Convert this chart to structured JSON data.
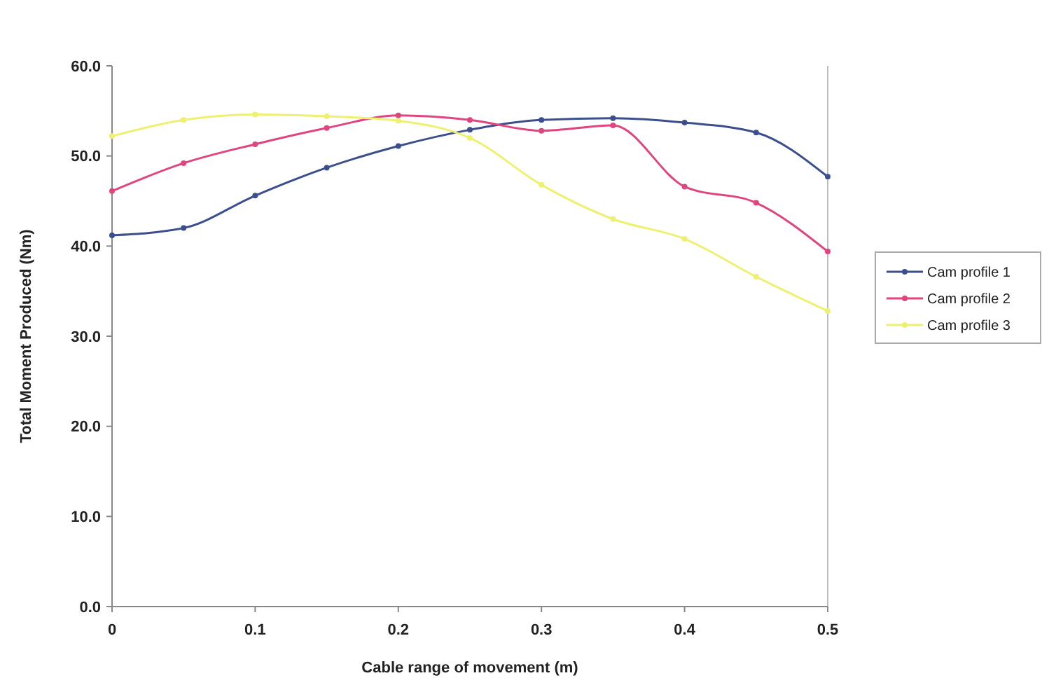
{
  "chart_data": {
    "type": "line",
    "xlabel": "Cable range of movement (m)",
    "ylabel": "Total Moment Produced (Nm)",
    "x": [
      0,
      0.05,
      0.1,
      0.15,
      0.2,
      0.25,
      0.3,
      0.35,
      0.4,
      0.45,
      0.5
    ],
    "series": [
      {
        "name": "Cam profile 1",
        "color": "#3a4f8c",
        "values": [
          41.2,
          42.0,
          45.6,
          48.7,
          51.1,
          52.9,
          54.0,
          54.2,
          53.7,
          52.6,
          47.7
        ]
      },
      {
        "name": "Cam profile 2",
        "color": "#e0457f",
        "values": [
          46.1,
          49.2,
          51.3,
          53.1,
          54.5,
          54.0,
          52.8,
          53.4,
          46.6,
          44.8,
          39.4
        ]
      },
      {
        "name": "Cam profile 3",
        "color": "#eef070",
        "values": [
          52.2,
          54.0,
          54.6,
          54.4,
          53.9,
          52.0,
          46.8,
          43.0,
          40.8,
          36.6,
          32.8
        ]
      }
    ],
    "xlim": [
      0,
      0.5
    ],
    "xticks": [
      0,
      0.1,
      0.2,
      0.3,
      0.4,
      0.5
    ],
    "ylim": [
      0,
      60
    ],
    "yticks": [
      {
        "value": 0,
        "label": "0.0"
      },
      {
        "value": 10,
        "label": "10.0"
      },
      {
        "value": 20,
        "label": "20.0"
      },
      {
        "value": 30,
        "label": "30.0"
      },
      {
        "value": 40,
        "label": "40.0"
      },
      {
        "value": 50,
        "label": "50.0"
      },
      {
        "value": 60,
        "label": "60.0"
      }
    ],
    "legend": "right",
    "marker": "circle",
    "line_style": "solid",
    "grid": false
  }
}
